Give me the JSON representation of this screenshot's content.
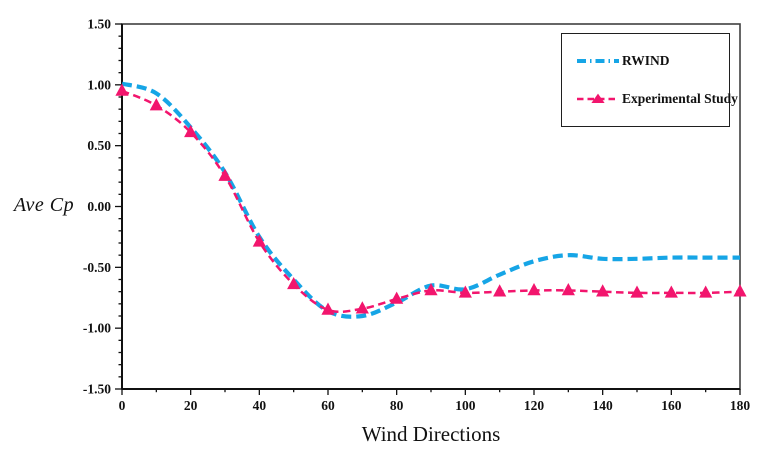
{
  "figure": {
    "background": "#ffffff",
    "frame_color": "#404040",
    "axis_color": "#111111",
    "text_color": "#111111"
  },
  "y_axis": {
    "label": "Ave Cp",
    "tick_labels": [
      "1.50",
      "1.00",
      "0.50",
      "0.00",
      "-0.50",
      "-1.00",
      "-1.50"
    ],
    "tick_values": [
      1.5,
      1.0,
      0.5,
      0.0,
      -0.5,
      -1.0,
      -1.5
    ]
  },
  "x_axis": {
    "label": "Wind Directions",
    "tick_labels": [
      "0",
      "20",
      "40",
      "60",
      "80",
      "100",
      "120",
      "140",
      "160",
      "180"
    ],
    "tick_values": [
      0,
      20,
      40,
      60,
      80,
      100,
      120,
      140,
      160,
      180
    ]
  },
  "legend": {
    "items": [
      {
        "label": "RWIND",
        "color": "#16A5E6",
        "sample": "dash-dot-line"
      },
      {
        "label": "Experimental Study",
        "color": "#F2156D",
        "sample": "dash-triangle-line"
      }
    ]
  },
  "chart_data": {
    "type": "line",
    "title": "",
    "xlabel": "Wind Directions",
    "ylabel": "Ave Cp",
    "xlim": [
      0,
      180
    ],
    "ylim": [
      -1.5,
      1.5
    ],
    "x_major_tick": 20,
    "x_minor_tick": 10,
    "y_major_tick": 0.5,
    "y_minor_tick": 0.1,
    "grid": false,
    "legend_position": "top-right",
    "x": [
      0,
      10,
      20,
      30,
      40,
      50,
      60,
      70,
      80,
      90,
      100,
      110,
      120,
      130,
      140,
      150,
      160,
      170,
      180
    ],
    "series": [
      {
        "name": "RWIND",
        "color": "#16A5E6",
        "line_style": "dashed",
        "line_width": 4.2,
        "marker": "none",
        "values": [
          1.01,
          0.93,
          0.65,
          0.28,
          -0.25,
          -0.6,
          -0.86,
          -0.9,
          -0.79,
          -0.65,
          -0.68,
          -0.56,
          -0.45,
          -0.4,
          -0.43,
          -0.43,
          -0.42,
          -0.42,
          -0.42
        ]
      },
      {
        "name": "Experimental Study",
        "color": "#F2156D",
        "line_style": "dashed",
        "line_width": 2.5,
        "marker": "triangle",
        "values": [
          0.95,
          0.83,
          0.61,
          0.25,
          -0.29,
          -0.64,
          -0.85,
          -0.84,
          -0.76,
          -0.69,
          -0.71,
          -0.7,
          -0.69,
          -0.69,
          -0.7,
          -0.71,
          -0.71,
          -0.71,
          -0.7
        ]
      }
    ]
  }
}
